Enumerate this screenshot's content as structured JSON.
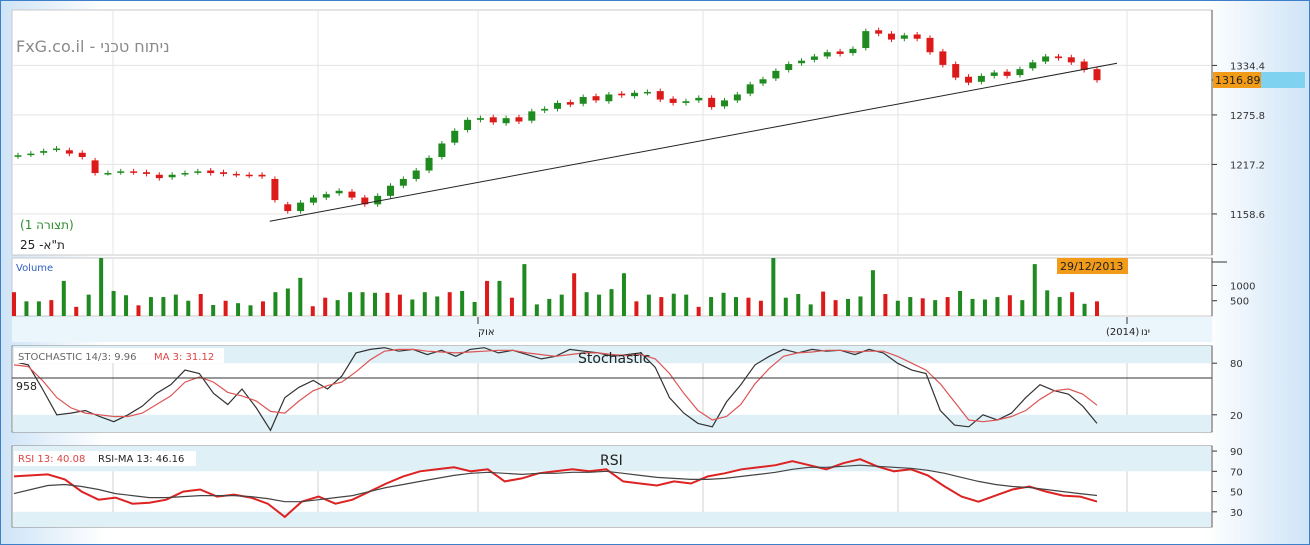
{
  "brand": "FxG.co.il - ניתוח טכני",
  "instrument": "ת\"א- 25",
  "view_label": "(תצורה 1)",
  "volume_label": "Volume",
  "date_badge": "29/12/2013",
  "x_tick_labels": [
    "אוק",
    "(2014)",
    "ינו"
  ],
  "stoch": {
    "title": "Stochastic",
    "label": "STOCHASTIC 14/3: 9.96",
    "ma_label": "MA 3: 31.12",
    "left_value": "958"
  },
  "rsi": {
    "title": "RSI",
    "label": "RSI 13: 40.08",
    "ma_label": "RSI-MA 13: 46.16"
  },
  "colors": {
    "up": "#1f8a1f",
    "down": "#dd1a1a",
    "badge": "#f29b18",
    "rsi": "#dd2222",
    "stoch_k": "#333333",
    "stoch_d": "#dd5555"
  },
  "chart_data": [
    {
      "type": "candlestick",
      "title": "",
      "y_ticks": [
        1158.6,
        1217.2,
        1275.8,
        1334.4
      ],
      "current_price": "1316.89",
      "ylim": [
        1110,
        1400
      ],
      "close": [
        1228,
        1230,
        1233,
        1236,
        1230,
        1226,
        1207,
        1207,
        1209,
        1208,
        1206,
        1201,
        1205,
        1207,
        1209,
        1207,
        1206,
        1205,
        1204,
        1203,
        1175,
        1162,
        1172,
        1178,
        1182,
        1186,
        1178,
        1170,
        1180,
        1192,
        1200,
        1210,
        1225,
        1242,
        1257,
        1270,
        1272,
        1267,
        1272,
        1268,
        1280,
        1283,
        1290,
        1288,
        1297,
        1293,
        1300,
        1299,
        1302,
        1303,
        1294,
        1290,
        1292,
        1296,
        1285,
        1293,
        1300,
        1312,
        1318,
        1328,
        1336,
        1340,
        1345,
        1350,
        1348,
        1354,
        1375,
        1372,
        1365,
        1370,
        1366,
        1350,
        1335,
        1320,
        1314,
        1322,
        1326,
        1322,
        1330,
        1338,
        1345,
        1343,
        1338,
        1329,
        1316.89
      ],
      "open": [
        1227,
        1229,
        1231,
        1235,
        1234,
        1231,
        1222,
        1207,
        1208,
        1209,
        1208,
        1205,
        1202,
        1206,
        1208,
        1210,
        1208,
        1206,
        1205,
        1205,
        1200,
        1170,
        1162,
        1172,
        1178,
        1183,
        1185,
        1178,
        1170,
        1180,
        1192,
        1200,
        1210,
        1226,
        1243,
        1258,
        1270,
        1273,
        1266,
        1273,
        1269,
        1281,
        1283,
        1291,
        1289,
        1298,
        1292,
        1301,
        1298,
        1302,
        1304,
        1295,
        1290,
        1293,
        1296,
        1286,
        1293,
        1301,
        1313,
        1319,
        1329,
        1337,
        1341,
        1345,
        1351,
        1349,
        1355,
        1376,
        1372,
        1366,
        1371,
        1367,
        1351,
        1336,
        1321,
        1315,
        1322,
        1327,
        1323,
        1331,
        1339,
        1345,
        1344,
        1339,
        1330
      ],
      "trendline": {
        "from_index": 21,
        "from_value": 1150,
        "to_index": 84,
        "to_value": 1337
      }
    },
    {
      "type": "bar",
      "title": "Volume",
      "y_ticks": [
        500,
        1000
      ],
      "values": [
        780,
        480,
        480,
        520,
        1150,
        300,
        700,
        1900,
        820,
        680,
        350,
        620,
        620,
        700,
        500,
        720,
        360,
        500,
        420,
        350,
        480,
        780,
        900,
        1250,
        320,
        600,
        520,
        780,
        780,
        760,
        760,
        700,
        540,
        780,
        640,
        780,
        820,
        460,
        1150,
        1150,
        600,
        1700,
        380,
        560,
        700,
        1400,
        780,
        700,
        880,
        1400,
        480,
        700,
        620,
        730,
        700,
        300,
        620,
        760,
        620,
        600,
        500,
        1900,
        600,
        720,
        380,
        800,
        520,
        560,
        640,
        1500,
        720,
        500,
        620,
        580,
        520,
        620,
        820,
        560,
        540,
        620,
        680,
        520,
        1700,
        840,
        620,
        780,
        400,
        480
      ],
      "ylim": [
        0,
        1900
      ]
    },
    {
      "type": "line",
      "title": "Stochastic",
      "y_ticks": [
        20,
        80
      ],
      "ylim": [
        0,
        100
      ],
      "series": [
        {
          "name": "STOCHASTIC 14/3",
          "values": [
            82,
            78,
            50,
            20,
            22,
            25,
            18,
            12,
            20,
            30,
            45,
            55,
            72,
            68,
            45,
            32,
            50,
            28,
            2,
            40,
            52,
            60,
            50,
            65,
            92,
            96,
            98,
            94,
            96,
            90,
            95,
            88,
            96,
            98,
            92,
            95,
            90,
            85,
            88,
            96,
            94,
            92,
            88,
            90,
            92,
            75,
            40,
            22,
            10,
            6,
            35,
            55,
            78,
            88,
            96,
            92,
            96,
            94,
            95,
            90,
            96,
            92,
            80,
            72,
            68,
            25,
            8,
            6,
            20,
            14,
            22,
            40,
            55,
            48,
            44,
            30,
            9.96
          ]
        },
        {
          "name": "MA 3",
          "values": [
            78,
            76,
            60,
            40,
            28,
            22,
            20,
            18,
            18,
            22,
            32,
            42,
            58,
            64,
            58,
            46,
            42,
            36,
            24,
            22,
            36,
            48,
            54,
            58,
            70,
            84,
            94,
            96,
            96,
            94,
            93,
            92,
            93,
            94,
            95,
            95,
            92,
            90,
            88,
            90,
            92,
            92,
            90,
            89,
            90,
            85,
            68,
            45,
            25,
            14,
            18,
            32,
            56,
            74,
            88,
            92,
            93,
            95,
            95,
            93,
            94,
            94,
            88,
            80,
            72,
            56,
            35,
            14,
            12,
            14,
            18,
            25,
            38,
            48,
            50,
            44,
            31.12
          ]
        }
      ]
    },
    {
      "type": "line",
      "title": "RSI",
      "y_ticks": [
        30,
        50,
        70,
        90
      ],
      "ylim": [
        15,
        95
      ],
      "series": [
        {
          "name": "RSI 13",
          "values": [
            65,
            66,
            67,
            62,
            50,
            42,
            44,
            38,
            39,
            42,
            50,
            52,
            45,
            47,
            44,
            38,
            25,
            40,
            45,
            38,
            42,
            50,
            58,
            65,
            70,
            72,
            74,
            70,
            72,
            60,
            63,
            68,
            70,
            72,
            70,
            72,
            60,
            58,
            56,
            60,
            58,
            65,
            68,
            72,
            74,
            76,
            80,
            76,
            72,
            78,
            82,
            75,
            70,
            72,
            66,
            55,
            45,
            40,
            46,
            52,
            55,
            50,
            46,
            45,
            40.08
          ]
        },
        {
          "name": "RSI-MA 13",
          "values": [
            48,
            52,
            56,
            57,
            55,
            52,
            48,
            46,
            44,
            44,
            45,
            46,
            46,
            46,
            45,
            43,
            40,
            40,
            42,
            44,
            46,
            50,
            54,
            57,
            60,
            63,
            66,
            68,
            69,
            68,
            67,
            68,
            68,
            69,
            69,
            70,
            68,
            66,
            64,
            63,
            62,
            62,
            63,
            65,
            67,
            69,
            72,
            74,
            74,
            75,
            76,
            75,
            74,
            73,
            71,
            68,
            64,
            60,
            57,
            55,
            54,
            52,
            50,
            48,
            46.16
          ]
        }
      ]
    }
  ]
}
